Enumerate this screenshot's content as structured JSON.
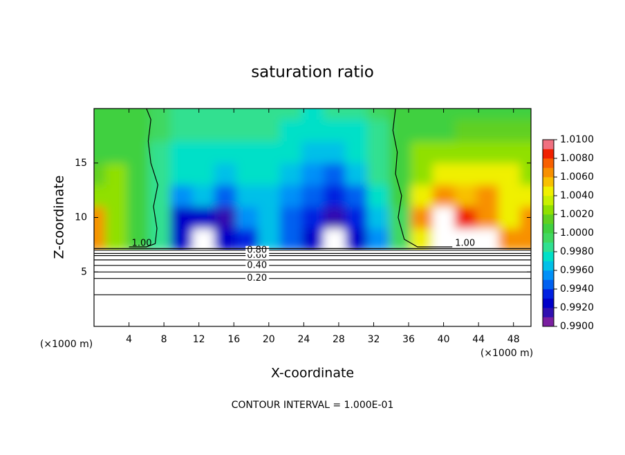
{
  "chart_data": {
    "type": "contour",
    "title": "saturation ratio",
    "x_label": "X-coordinate",
    "y_label": "Z-coordinate",
    "x_unit_labels": [
      "(×1000 m)",
      "(×1000 m)"
    ],
    "footnote": "CONTOUR INTERVAL = 1.000E-01",
    "xlim": [
      0,
      50
    ],
    "xticks": [
      4,
      8,
      12,
      16,
      20,
      24,
      28,
      32,
      36,
      40,
      44,
      48
    ],
    "ylim": [
      0,
      20
    ],
    "yticks": [
      5,
      10,
      15
    ],
    "field": {
      "x": [
        0,
        2.5,
        5,
        7.5,
        10,
        12.5,
        15,
        17.5,
        20,
        22.5,
        25,
        27.5,
        30,
        32.5,
        35,
        37.5,
        40,
        42.5,
        45,
        47.5,
        50
      ],
      "z": [
        8,
        10,
        12,
        14,
        16,
        18,
        20
      ],
      "values": [
        [
          1.0065,
          1.003,
          1.0005,
          0.9985,
          0.9925,
          0.989,
          0.9925,
          0.9935,
          0.996,
          0.9945,
          0.9925,
          0.989,
          0.9925,
          0.9955,
          0.999,
          1.005,
          1.012,
          1.012,
          1.011,
          1.006,
          1.007
        ],
        [
          1.006,
          1.002,
          1.001,
          0.9985,
          0.9925,
          0.9925,
          0.9915,
          0.995,
          0.9965,
          0.9945,
          0.993,
          0.9915,
          0.9935,
          0.996,
          0.9995,
          1.0065,
          1.011,
          1.008,
          1.007,
          1.005,
          1.006
        ],
        [
          1.003,
          1.0025,
          1.0005,
          0.998,
          0.9955,
          0.996,
          0.9945,
          0.9965,
          0.9965,
          0.995,
          0.994,
          0.993,
          0.9945,
          0.997,
          1.0,
          1.004,
          1.006,
          1.0055,
          1.006,
          1.005,
          1.004
        ],
        [
          1.0015,
          1.002,
          1.0005,
          0.998,
          0.997,
          0.997,
          0.9965,
          0.997,
          0.997,
          0.996,
          0.995,
          0.9945,
          0.996,
          0.998,
          1.0,
          1.003,
          1.004,
          1.004,
          1.0045,
          1.004,
          1.003
        ],
        [
          1.001,
          1.001,
          1.0005,
          0.9985,
          0.9975,
          0.9975,
          0.997,
          0.9975,
          0.9975,
          0.997,
          0.996,
          0.996,
          0.997,
          0.998,
          1.0,
          1.002,
          1.002,
          1.0025,
          1.0025,
          1.0025,
          1.002
        ],
        [
          1.001,
          1.0005,
          1.0005,
          0.999,
          0.998,
          0.998,
          0.998,
          0.998,
          0.998,
          0.9975,
          0.997,
          0.997,
          0.9975,
          0.9985,
          1.0,
          1.001,
          1.001,
          1.0015,
          1.0015,
          1.0015,
          1.0015
        ],
        [
          1.0005,
          1.0005,
          1.0005,
          0.999,
          0.9985,
          0.9985,
          0.9985,
          0.9985,
          0.998,
          0.998,
          0.9975,
          0.998,
          0.998,
          0.999,
          1.0,
          1.0005,
          1.001,
          1.001,
          1.001,
          1.001,
          1.001
        ]
      ]
    },
    "colorbar": {
      "ticks": [
        {
          "value": 0.99,
          "label": "0.9900"
        },
        {
          "value": 0.992,
          "label": "0.9920"
        },
        {
          "value": 0.994,
          "label": "0.9940"
        },
        {
          "value": 0.996,
          "label": "0.9960"
        },
        {
          "value": 0.998,
          "label": "0.9980"
        },
        {
          "value": 1.0,
          "label": "1.0000"
        },
        {
          "value": 1.002,
          "label": "1.0020"
        },
        {
          "value": 1.004,
          "label": "1.0040"
        },
        {
          "value": 1.006,
          "label": "1.0060"
        },
        {
          "value": 1.008,
          "label": "1.0080"
        },
        {
          "value": 1.01,
          "label": "1.0100"
        }
      ],
      "colors": [
        "#7a1fa0",
        "#3010b0",
        "#0000c8",
        "#0020e0",
        "#0060f0",
        "#0090f8",
        "#00c0e8",
        "#00e0c8",
        "#30e090",
        "#40d860",
        "#40d040",
        "#60d020",
        "#90e000",
        "#c8f000",
        "#f0f000",
        "#f8c000",
        "#f89000",
        "#f86000",
        "#f02000",
        "#f07080"
      ]
    },
    "contours": [
      {
        "x": [
          0,
          50
        ],
        "z": [
          2.9,
          2.9
        ]
      },
      {
        "x": [
          0,
          50
        ],
        "z": [
          4.4,
          4.4
        ],
        "label": "0.20"
      },
      {
        "x": [
          0,
          50
        ],
        "z": [
          5.0,
          5.0
        ]
      },
      {
        "x": [
          0,
          50
        ],
        "z": [
          5.6,
          5.6
        ],
        "label": "0.40"
      },
      {
        "x": [
          0,
          50
        ],
        "z": [
          6.1,
          6.1
        ]
      },
      {
        "x": [
          0,
          50
        ],
        "z": [
          6.5,
          6.5
        ],
        "label": "0.60"
      },
      {
        "x": [
          0,
          50
        ],
        "z": [
          6.7,
          6.7
        ]
      },
      {
        "x": [
          0,
          50
        ],
        "z": [
          7.0,
          7.0
        ],
        "label": "0.80"
      },
      {
        "x": [
          0,
          50
        ],
        "z": [
          7.15,
          7.15
        ]
      },
      {
        "x": [
          4,
          6,
          7,
          7.2,
          6.8,
          7.3,
          6.5,
          6.2,
          6.5,
          6
        ],
        "z": [
          7.3,
          7.3,
          7.6,
          9,
          11,
          13,
          15,
          17,
          19,
          20
        ],
        "label": "1.00"
      },
      {
        "x": [
          41,
          37,
          35.5,
          34.8,
          35.2,
          34.5,
          34.7,
          34.2,
          34.5
        ],
        "z": [
          7.3,
          7.3,
          8,
          10,
          12,
          14,
          16,
          18,
          20
        ],
        "label": "1.00"
      }
    ]
  }
}
